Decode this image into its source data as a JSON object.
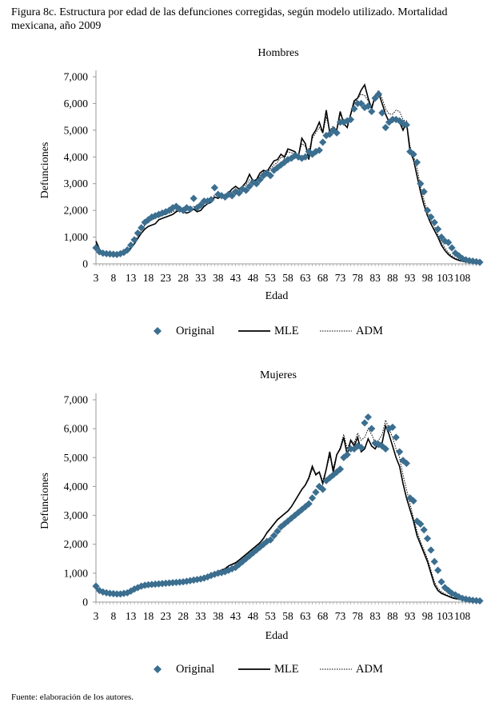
{
  "figure": {
    "title": "Figura 8c. Estructura por edad de las defunciones corregidas, según modelo utilizado. Mortalidad mexicana,  año 2009",
    "source": "Fuente: elaboración de los autores."
  },
  "colors": {
    "original": "#3b6e8f",
    "mle": "#000000",
    "adm": "#000000"
  },
  "chart_data": [
    {
      "type": "line",
      "title": "Hombres",
      "xlabel": "Edad",
      "ylabel": "Defunciones",
      "ylim": [
        0,
        7000
      ],
      "yticks": [
        "0",
        "1,000",
        "2,000",
        "3,000",
        "4,000",
        "5,000",
        "6,000",
        "7,000"
      ],
      "xticks": [
        "3",
        "8",
        "13",
        "18",
        "23",
        "28",
        "33",
        "38",
        "43",
        "48",
        "53",
        "58",
        "63",
        "68",
        "73",
        "78",
        "83",
        "88",
        "93",
        "98",
        "103",
        "108"
      ],
      "legend": [
        "Original",
        "MLE",
        "ADM"
      ],
      "x_start": 3,
      "series": [
        {
          "name": "Original",
          "values": [
            600,
            450,
            400,
            380,
            370,
            360,
            350,
            380,
            430,
            520,
            700,
            900,
            1150,
            1350,
            1550,
            1650,
            1750,
            1800,
            1850,
            1900,
            1950,
            2000,
            2100,
            2150,
            2050,
            2000,
            2100,
            2050,
            2450,
            2100,
            2200,
            2350,
            2350,
            2400,
            2850,
            2600,
            2550,
            2500,
            2600,
            2550,
            2700,
            2650,
            2800,
            2750,
            2900,
            3050,
            3000,
            3150,
            3300,
            3400,
            3300,
            3500,
            3600,
            3700,
            3800,
            3900,
            3950,
            4050,
            4000,
            3950,
            4000,
            4200,
            4100,
            4200,
            4250,
            4550,
            4800,
            4850,
            5000,
            4900,
            5300,
            5300,
            5350,
            5400,
            5800,
            6000,
            6000,
            5850,
            5900,
            5700,
            6200,
            6350,
            5650,
            5100,
            5300,
            5400,
            5400,
            5350,
            5250,
            5200,
            4200,
            4100,
            3800,
            3000,
            2700,
            2000,
            1750,
            1550,
            1300,
            1000,
            850,
            800,
            600,
            400,
            300,
            200,
            150,
            120,
            100,
            80,
            60
          ]
        },
        {
          "name": "MLE",
          "values": [
            850,
            550,
            400,
            350,
            340,
            330,
            330,
            340,
            380,
            450,
            580,
            750,
            950,
            1150,
            1300,
            1400,
            1450,
            1500,
            1650,
            1700,
            1750,
            1800,
            1850,
            1950,
            2000,
            1950,
            1900,
            1950,
            2050,
            1950,
            2000,
            2150,
            2250,
            2300,
            2500,
            2450,
            2550,
            2450,
            2650,
            2800,
            2900,
            2800,
            2900,
            3050,
            3350,
            3100,
            3150,
            3400,
            3500,
            3450,
            3650,
            3850,
            3900,
            4100,
            4000,
            4300,
            4250,
            4200,
            4000,
            4700,
            4500,
            3900,
            4800,
            5000,
            5300,
            4900,
            5750,
            4900,
            5100,
            5000,
            5700,
            5250,
            5100,
            5600,
            6100,
            6200,
            6500,
            6700,
            6200,
            5800,
            6300,
            6400,
            6000,
            5600,
            5300,
            5500,
            5400,
            5300,
            5000,
            5300,
            4200,
            3900,
            3300,
            2700,
            2200,
            1800,
            1500,
            1250,
            1000,
            700,
            500,
            350,
            250,
            180,
            130,
            100,
            80,
            60,
            50,
            40,
            30
          ]
        },
        {
          "name": "ADM",
          "values": [
            750,
            500,
            380,
            360,
            350,
            340,
            340,
            360,
            400,
            480,
            620,
            820,
            1050,
            1250,
            1450,
            1550,
            1650,
            1700,
            1750,
            1800,
            1850,
            1900,
            1950,
            2000,
            2050,
            2000,
            2050,
            2100,
            2150,
            2050,
            2100,
            2250,
            2300,
            2350,
            2600,
            2500,
            2550,
            2500,
            2650,
            2700,
            2800,
            2750,
            2850,
            2950,
            3150,
            3100,
            3100,
            3300,
            3450,
            3400,
            3550,
            3700,
            3800,
            4000,
            3950,
            4200,
            4150,
            4150,
            4050,
            4500,
            4400,
            4200,
            4700,
            4900,
            5100,
            4900,
            5500,
            5000,
            5150,
            5000,
            5600,
            5350,
            5300,
            5550,
            6000,
            6200,
            6350,
            6300,
            6100,
            5900,
            6250,
            6500,
            6200,
            5800,
            5600,
            5600,
            5750,
            5700,
            5400,
            5300,
            4400,
            4050,
            3600,
            2900,
            2400,
            1950,
            1650,
            1400,
            1100,
            800,
            600,
            420,
            300,
            210,
            150,
            110,
            85,
            65,
            55,
            45,
            35
          ]
        }
      ]
    },
    {
      "type": "line",
      "title": "Mujeres",
      "xlabel": "Edad",
      "ylabel": "Defunciones",
      "ylim": [
        0,
        7000
      ],
      "yticks": [
        "0",
        "1,000",
        "2,000",
        "3,000",
        "4,000",
        "5,000",
        "6,000",
        "7,000"
      ],
      "xticks": [
        "3",
        "8",
        "13",
        "18",
        "23",
        "28",
        "33",
        "38",
        "43",
        "48",
        "53",
        "58",
        "63",
        "68",
        "73",
        "78",
        "83",
        "88",
        "93",
        "98",
        "103",
        "108"
      ],
      "legend": [
        "Original",
        "MLE",
        "ADM"
      ],
      "x_start": 3,
      "series": [
        {
          "name": "Original",
          "values": [
            550,
            400,
            350,
            320,
            300,
            290,
            280,
            280,
            300,
            320,
            380,
            450,
            500,
            550,
            580,
            600,
            610,
            620,
            630,
            640,
            650,
            660,
            670,
            680,
            690,
            700,
            720,
            740,
            760,
            780,
            800,
            830,
            870,
            920,
            960,
            1000,
            1020,
            1050,
            1100,
            1150,
            1200,
            1300,
            1400,
            1500,
            1600,
            1700,
            1800,
            1900,
            2000,
            2100,
            2150,
            2300,
            2450,
            2600,
            2700,
            2800,
            2900,
            3000,
            3100,
            3200,
            3300,
            3400,
            3600,
            3800,
            4000,
            3900,
            4200,
            4300,
            4400,
            4500,
            4600,
            5000,
            5100,
            5300,
            5300,
            5400,
            5350,
            6200,
            6400,
            6000,
            5500,
            5450,
            5400,
            5300,
            6000,
            6050,
            5700,
            5200,
            4900,
            4800,
            3600,
            3500,
            2800,
            2700,
            2500,
            2200,
            1800,
            1400,
            1100,
            700,
            500,
            400,
            300,
            250,
            180,
            130,
            100,
            80,
            60,
            50,
            40
          ]
        },
        {
          "name": "MLE",
          "values": [
            500,
            380,
            330,
            300,
            280,
            270,
            260,
            260,
            280,
            300,
            340,
            400,
            460,
            500,
            520,
            540,
            560,
            570,
            590,
            600,
            610,
            630,
            650,
            660,
            680,
            700,
            720,
            740,
            760,
            800,
            820,
            860,
            900,
            960,
            1000,
            1050,
            1100,
            1150,
            1250,
            1300,
            1350,
            1450,
            1550,
            1650,
            1750,
            1850,
            1950,
            2050,
            2200,
            2400,
            2550,
            2700,
            2850,
            2950,
            3050,
            3150,
            3300,
            3500,
            3700,
            3900,
            4050,
            4300,
            4700,
            4400,
            4500,
            4100,
            4600,
            5200,
            4500,
            5100,
            5300,
            5700,
            5100,
            5600,
            5400,
            5700,
            5200,
            5300,
            5650,
            5400,
            5300,
            5500,
            5500,
            6100,
            5800,
            5400,
            5000,
            4700,
            4100,
            3600,
            3200,
            2800,
            2300,
            2000,
            1700,
            1400,
            1000,
            600,
            400,
            300,
            250,
            200,
            150,
            120,
            100,
            80,
            60,
            50,
            40,
            30,
            25
          ]
        },
        {
          "name": "ADM",
          "values": [
            520,
            390,
            340,
            310,
            290,
            280,
            270,
            270,
            290,
            310,
            360,
            420,
            480,
            520,
            550,
            570,
            580,
            590,
            600,
            610,
            630,
            640,
            660,
            670,
            690,
            710,
            730,
            750,
            780,
            810,
            840,
            880,
            920,
            970,
            1020,
            1070,
            1120,
            1170,
            1260,
            1320,
            1380,
            1460,
            1560,
            1660,
            1760,
            1860,
            1960,
            2070,
            2220,
            2380,
            2520,
            2680,
            2830,
            2940,
            3040,
            3160,
            3300,
            3480,
            3680,
            3880,
            4030,
            4250,
            4600,
            4450,
            4500,
            4200,
            4600,
            5050,
            4650,
            5100,
            5350,
            5800,
            5300,
            5600,
            5500,
            5850,
            5600,
            5700,
            6000,
            5800,
            5500,
            5600,
            5800,
            6300,
            6000,
            5700,
            5300,
            5000,
            4400,
            3900,
            3400,
            2900,
            2450,
            2100,
            1800,
            1500,
            1100,
            700,
            480,
            350,
            280,
            220,
            170,
            130,
            105,
            85,
            65,
            55,
            45,
            35,
            28
          ]
        }
      ]
    }
  ]
}
